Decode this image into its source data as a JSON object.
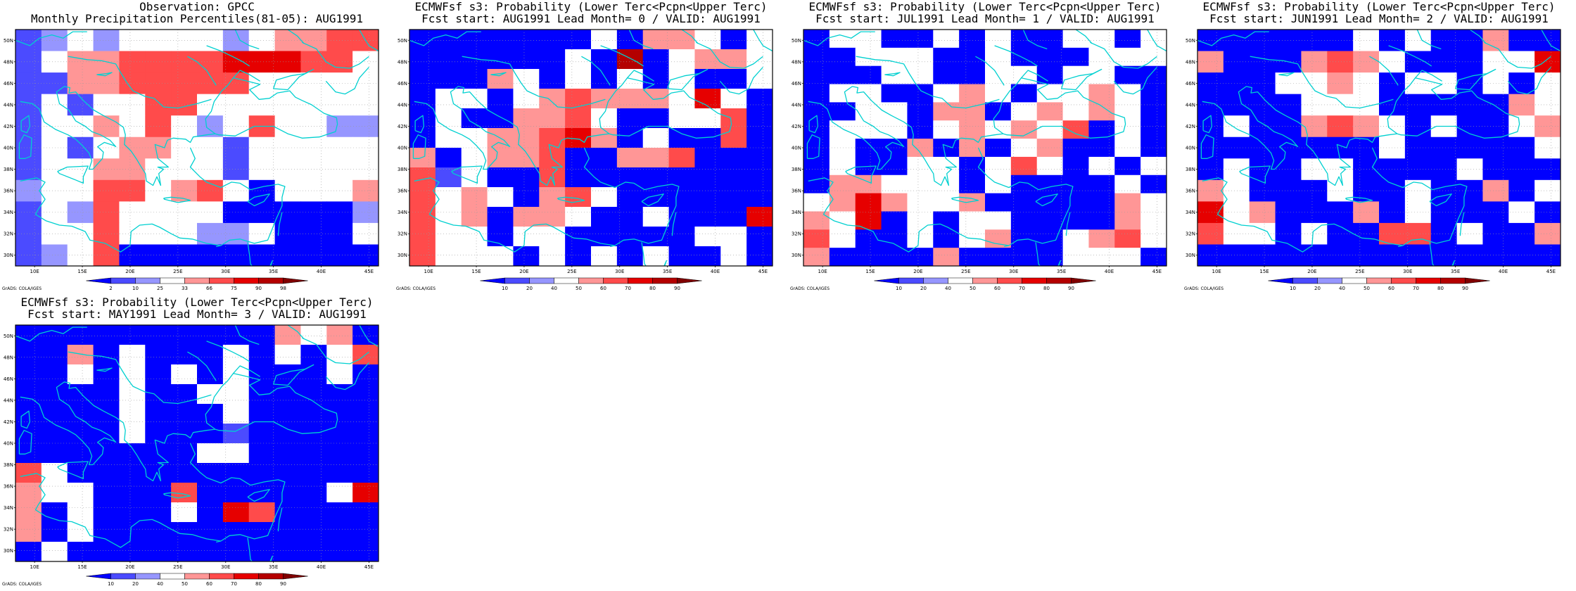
{
  "panels": [
    {
      "id": "obs",
      "title1": "Observation: GPCC",
      "title2": "Monthly Precipitation Percentiles(81-05): AUG1991",
      "legend": "percentile",
      "grid": [
        [
          "b2",
          "b1",
          "w",
          "b1",
          "w",
          "w",
          "w",
          "w",
          "b1",
          "w",
          "r1",
          "r1",
          "r2",
          "r2"
        ],
        [
          "b2",
          "w",
          "r1",
          "r1",
          "r2",
          "r2",
          "r2",
          "r2",
          "r3",
          "r3",
          "r3",
          "r2",
          "r2",
          "w"
        ],
        [
          "b2",
          "b2",
          "r1",
          "r1",
          "r2",
          "r2",
          "r2",
          "r2",
          "r2",
          "w",
          "w",
          "w",
          "w",
          "w"
        ],
        [
          "b2",
          "w",
          "b2",
          "w",
          "w",
          "r2",
          "r2",
          "w",
          "w",
          "w",
          "w",
          "w",
          "w",
          "w"
        ],
        [
          "b2",
          "w",
          "w",
          "r1",
          "w",
          "r2",
          "w",
          "b1",
          "w",
          "r2",
          "w",
          "w",
          "b1",
          "b1"
        ],
        [
          "b2",
          "w",
          "b2",
          "w",
          "r1",
          "r1",
          "w",
          "w",
          "b2",
          "w",
          "w",
          "w",
          "w",
          "w"
        ],
        [
          "b2",
          "w",
          "w",
          "r1",
          "r1",
          "w",
          "w",
          "w",
          "b2",
          "w",
          "w",
          "w",
          "w",
          "w"
        ],
        [
          "b1",
          "w",
          "w",
          "r2",
          "r2",
          "w",
          "r1",
          "r2",
          "w",
          "b3",
          "w",
          "w",
          "w",
          "r1"
        ],
        [
          "b2",
          "w",
          "b1",
          "r2",
          "w",
          "w",
          "w",
          "w",
          "b3",
          "b3",
          "b3",
          "b3",
          "b3",
          "b1"
        ],
        [
          "b2",
          "w",
          "w",
          "r2",
          "w",
          "w",
          "w",
          "b1",
          "b1",
          "w",
          "b3",
          "b3",
          "b3",
          "w"
        ],
        [
          "b2",
          "b1",
          "w",
          "r2",
          "b3",
          "b3",
          "b3",
          "b3",
          "b3",
          "b3",
          "b3",
          "b3",
          "b3",
          "b3"
        ]
      ]
    },
    {
      "id": "lead0",
      "title1": "ECMWFsf s3: Probability (Lower Terc<Pcpn<Upper Terc)",
      "title2": "Fcst start: AUG1991  Lead Month= 0 / VALID: AUG1991",
      "legend": "probability",
      "grid": [
        [
          "b3",
          "b3",
          "b3",
          "b3",
          "b3",
          "b3",
          "b3",
          "w",
          "b3",
          "r1",
          "r1",
          "w",
          "b3",
          "w"
        ],
        [
          "b3",
          "b3",
          "b3",
          "b3",
          "b3",
          "b3",
          "w",
          "b3",
          "r4",
          "b3",
          "w",
          "r1",
          "r1",
          "w"
        ],
        [
          "b3",
          "b3",
          "b3",
          "r1",
          "w",
          "b3",
          "w",
          "b3",
          "w",
          "b3",
          "w",
          "b3",
          "b3",
          "w"
        ],
        [
          "b3",
          "w",
          "w",
          "b3",
          "w",
          "r1",
          "r2",
          "r1",
          "r1",
          "r1",
          "w",
          "r3",
          "w",
          "b3"
        ],
        [
          "b3",
          "w",
          "b3",
          "b3",
          "r1",
          "r1",
          "r2",
          "w",
          "b3",
          "b3",
          "w",
          "w",
          "r2",
          "b3"
        ],
        [
          "b3",
          "w",
          "w",
          "r1",
          "r1",
          "r2",
          "r3",
          "r1",
          "b3",
          "w",
          "b3",
          "b3",
          "r2",
          "b3"
        ],
        [
          "r1",
          "b3",
          "w",
          "r1",
          "r1",
          "r2",
          "b3",
          "b3",
          "r1",
          "r1",
          "r2",
          "b3",
          "b3",
          "b3"
        ],
        [
          "r2",
          "b2",
          "w",
          "b3",
          "b3",
          "r2",
          "b3",
          "b3",
          "b3",
          "b3",
          "b3",
          "b3",
          "b3",
          "b3"
        ],
        [
          "r2",
          "w",
          "r1",
          "w",
          "b3",
          "r1",
          "r2",
          "w",
          "b3",
          "b3",
          "b3",
          "b3",
          "b3",
          "b3"
        ],
        [
          "r2",
          "w",
          "r1",
          "b3",
          "r1",
          "r1",
          "w",
          "b3",
          "b3",
          "w",
          "b3",
          "b3",
          "b3",
          "r3"
        ],
        [
          "r2",
          "w",
          "w",
          "b3",
          "w",
          "w",
          "b3",
          "b3",
          "b3",
          "b3",
          "b3",
          "w",
          "w",
          "b3"
        ],
        [
          "r2",
          "w",
          "w",
          "w",
          "b3",
          "w",
          "b3",
          "w",
          "b3",
          "w",
          "b3",
          "b3",
          "w",
          "b3"
        ]
      ]
    },
    {
      "id": "lead1",
      "title1": "ECMWFsf s3: Probability (Lower Terc<Pcpn<Upper Terc)",
      "title2": "Fcst start: JUL1991  Lead Month= 1 / VALID: AUG1991",
      "legend": "probability",
      "grid": [
        [
          "b3",
          "w",
          "w",
          "b3",
          "b3",
          "w",
          "b3",
          "w",
          "b3",
          "b3",
          "w",
          "w",
          "b3",
          "w"
        ],
        [
          "b3",
          "b3",
          "w",
          "w",
          "w",
          "b3",
          "b3",
          "w",
          "b3",
          "b3",
          "b3",
          "w",
          "w",
          "w"
        ],
        [
          "b3",
          "b3",
          "b3",
          "w",
          "w",
          "b3",
          "b3",
          "w",
          "w",
          "b3",
          "w",
          "w",
          "b3",
          "b3"
        ],
        [
          "b3",
          "w",
          "w",
          "b3",
          "b3",
          "w",
          "r1",
          "w",
          "b3",
          "w",
          "w",
          "r1",
          "w",
          "b3"
        ],
        [
          "b3",
          "b3",
          "w",
          "w",
          "b3",
          "r1",
          "r1",
          "b3",
          "w",
          "r1",
          "w",
          "r1",
          "w",
          "b3"
        ],
        [
          "b3",
          "w",
          "w",
          "w",
          "b3",
          "w",
          "r1",
          "w",
          "r1",
          "w",
          "r2",
          "b3",
          "w",
          "b3"
        ],
        [
          "b3",
          "w",
          "b3",
          "b3",
          "r1",
          "b3",
          "r1",
          "b3",
          "w",
          "r1",
          "b3",
          "b3",
          "w",
          "b3"
        ],
        [
          "b3",
          "w",
          "b3",
          "b3",
          "w",
          "w",
          "b3",
          "w",
          "r2",
          "w",
          "b3",
          "w",
          "b3",
          "w"
        ],
        [
          "b3",
          "r1",
          "r1",
          "w",
          "w",
          "w",
          "b3",
          "w",
          "b3",
          "b3",
          "b3",
          "b3",
          "w",
          "b3"
        ],
        [
          "w",
          "r1",
          "r3",
          "r1",
          "w",
          "w",
          "r1",
          "b3",
          "b3",
          "b3",
          "b3",
          "b3",
          "r1",
          "w"
        ],
        [
          "r1",
          "w",
          "r3",
          "b3",
          "w",
          "b3",
          "w",
          "w",
          "b3",
          "b3",
          "b3",
          "b3",
          "r1",
          "w"
        ],
        [
          "r2",
          "w",
          "b3",
          "b3",
          "w",
          "b3",
          "w",
          "r1",
          "b3",
          "b3",
          "w",
          "r1",
          "r2",
          "w"
        ],
        [
          "r1",
          "b3",
          "b3",
          "b3",
          "b3",
          "r1",
          "b3",
          "b3",
          "b3",
          "b3",
          "w",
          "w",
          "w",
          "b3"
        ]
      ]
    },
    {
      "id": "lead2",
      "title1": "ECMWFsf s3: Probability (Lower Terc<Pcpn<Upper Terc)",
      "title2": "Fcst start: JUN1991  Lead Month= 2 / VALID: AUG1991",
      "legend": "probability",
      "grid": [
        [
          "b3",
          "b3",
          "b3",
          "b3",
          "b3",
          "b3",
          "w",
          "b3",
          "w",
          "b3",
          "b3",
          "r1",
          "b3",
          "b3"
        ],
        [
          "r1",
          "b3",
          "b3",
          "b3",
          "r1",
          "r2",
          "r1",
          "w",
          "b3",
          "b3",
          "b3",
          "w",
          "w",
          "r3"
        ],
        [
          "b3",
          "b3",
          "b3",
          "w",
          "w",
          "r1",
          "w",
          "b3",
          "w",
          "w",
          "b3",
          "w",
          "b3",
          "w"
        ],
        [
          "b3",
          "b3",
          "b3",
          "b3",
          "w",
          "w",
          "w",
          "b3",
          "b3",
          "b3",
          "b3",
          "b3",
          "r1",
          "w"
        ],
        [
          "b3",
          "w",
          "b3",
          "b3",
          "r1",
          "r2",
          "r1",
          "w",
          "b3",
          "w",
          "b3",
          "b3",
          "w",
          "r1"
        ],
        [
          "b3",
          "b3",
          "b3",
          "b3",
          "b3",
          "b3",
          "b3",
          "w",
          "b3",
          "b3",
          "b3",
          "b3",
          "b3",
          "w"
        ],
        [
          "b3",
          "w",
          "b3",
          "b3",
          "w",
          "w",
          "b3",
          "b3",
          "b3",
          "b3",
          "w",
          "b3",
          "b3",
          "b3"
        ],
        [
          "r1",
          "w",
          "b3",
          "b3",
          "b3",
          "w",
          "b3",
          "b3",
          "w",
          "b3",
          "b3",
          "r1",
          "b3",
          "w"
        ],
        [
          "r3",
          "w",
          "r1",
          "b3",
          "b3",
          "b3",
          "r1",
          "b3",
          "w",
          "b3",
          "b3",
          "b3",
          "w",
          "b3"
        ],
        [
          "r2",
          "w",
          "w",
          "b3",
          "w",
          "b3",
          "b3",
          "r2",
          "r2",
          "b3",
          "w",
          "b3",
          "b3",
          "r1"
        ],
        [
          "b3",
          "b3",
          "b3",
          "b3",
          "b3",
          "b3",
          "b3",
          "b3",
          "b3",
          "b3",
          "b3",
          "b3",
          "b3",
          "b3"
        ]
      ]
    },
    {
      "id": "lead3",
      "title1": "ECMWFsf s3: Probability (Lower Terc<Pcpn<Upper Terc)",
      "title2": "Fcst start: MAY1991  Lead Month= 3 / VALID: AUG1991",
      "legend": "probability",
      "grid": [
        [
          "b3",
          "b3",
          "b3",
          "b3",
          "b3",
          "b3",
          "b3",
          "b3",
          "b3",
          "b3",
          "r1",
          "w",
          "r1",
          "b3"
        ],
        [
          "b3",
          "b3",
          "r1",
          "b3",
          "w",
          "b3",
          "b3",
          "b3",
          "w",
          "b3",
          "w",
          "b3",
          "w",
          "r2"
        ],
        [
          "b3",
          "b3",
          "w",
          "b3",
          "w",
          "b3",
          "w",
          "b3",
          "w",
          "b3",
          "b3",
          "b3",
          "w",
          "b3"
        ],
        [
          "b3",
          "b3",
          "b3",
          "b3",
          "w",
          "b3",
          "b3",
          "w",
          "w",
          "b3",
          "b3",
          "b3",
          "b3",
          "b3"
        ],
        [
          "b3",
          "b3",
          "b3",
          "b3",
          "w",
          "b3",
          "b3",
          "b3",
          "w",
          "b3",
          "b3",
          "b3",
          "b3",
          "b3"
        ],
        [
          "b3",
          "b3",
          "b3",
          "b3",
          "w",
          "b3",
          "b3",
          "b3",
          "b2",
          "b3",
          "b3",
          "b3",
          "b3",
          "b3"
        ],
        [
          "b3",
          "b3",
          "b3",
          "b3",
          "b3",
          "b3",
          "b3",
          "w",
          "w",
          "b3",
          "b3",
          "b3",
          "b3",
          "b3"
        ],
        [
          "r2",
          "w",
          "b3",
          "b3",
          "b3",
          "b3",
          "b3",
          "b3",
          "b3",
          "b3",
          "b3",
          "b3",
          "b3",
          "b3"
        ],
        [
          "r1",
          "w",
          "w",
          "b3",
          "b3",
          "b3",
          "r2",
          "b3",
          "b3",
          "b3",
          "b3",
          "b3",
          "w",
          "r3"
        ],
        [
          "r1",
          "b3",
          "w",
          "b3",
          "b3",
          "b3",
          "w",
          "b3",
          "r3",
          "r2",
          "b3",
          "b3",
          "b3",
          "b3"
        ],
        [
          "r1",
          "b3",
          "w",
          "b3",
          "b3",
          "b3",
          "b3",
          "b3",
          "b3",
          "b3",
          "b3",
          "b3",
          "b3",
          "b3"
        ],
        [
          "b3",
          "w",
          "b3",
          "b3",
          "b3",
          "b3",
          "b3",
          "b3",
          "b3",
          "b3",
          "b3",
          "b3",
          "b3",
          "b3"
        ]
      ]
    }
  ],
  "lat_labels": [
    "30N",
    "32N",
    "34N",
    "36N",
    "38N",
    "40N",
    "42N",
    "44N",
    "46N",
    "48N",
    "50N"
  ],
  "lon_labels": [
    "10E",
    "15E",
    "20E",
    "25E",
    "30E",
    "35E",
    "40E",
    "45E"
  ],
  "legends": {
    "percentile": [
      "2",
      "10",
      "25",
      "33",
      "66",
      "75",
      "90",
      "98"
    ],
    "probability": [
      "10",
      "20",
      "40",
      "50",
      "60",
      "70",
      "80",
      "90"
    ]
  },
  "legend_colors": [
    "#0000ff",
    "#4b4bff",
    "#9696ff",
    "#ffffff",
    "#ff9696",
    "#ff4b4b",
    "#e60000",
    "#b40000",
    "#800000"
  ],
  "cell_colors": {
    "b3": "#0000ff",
    "b2": "#4b4bff",
    "b1": "#9696ff",
    "w": "#ffffff",
    "r1": "#ff9696",
    "r2": "#ff4b4b",
    "r3": "#e60000",
    "r4": "#b40000"
  },
  "credit": "GrADS: COLA/IGES",
  "coast_color": "#00d0d0",
  "frame_color": "#000000"
}
